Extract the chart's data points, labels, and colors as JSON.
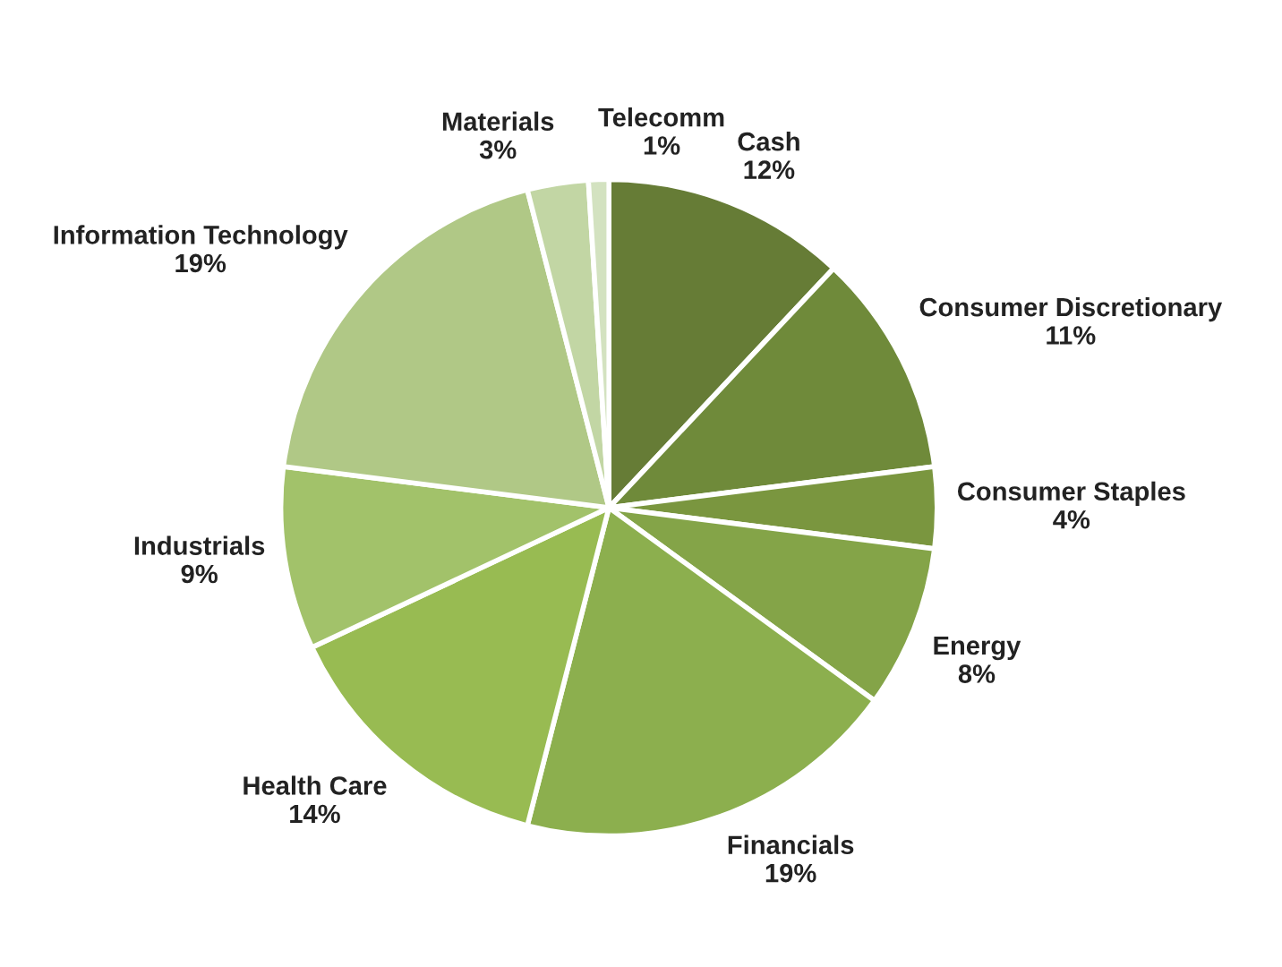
{
  "chart_data": {
    "type": "pie",
    "categories": [
      "Cash",
      "Consumer Discretionary",
      "Consumer Staples",
      "Energy",
      "Financials",
      "Health Care",
      "Industrials",
      "Information Technology",
      "Materials",
      "Telecomm"
    ],
    "values": [
      12,
      11,
      4,
      8,
      19,
      14,
      9,
      19,
      3,
      1
    ],
    "value_labels": [
      "12%",
      "11%",
      "4%",
      "8%",
      "19%",
      "14%",
      "9%",
      "19%",
      "3%",
      "1%"
    ],
    "colors": [
      "#667c36",
      "#6f8a3a",
      "#7a963f",
      "#84a448",
      "#8caf4e",
      "#98bb52",
      "#a2c26a",
      "#b0c886",
      "#c2d6a4",
      "#d3e2c0"
    ],
    "legend": false
  }
}
